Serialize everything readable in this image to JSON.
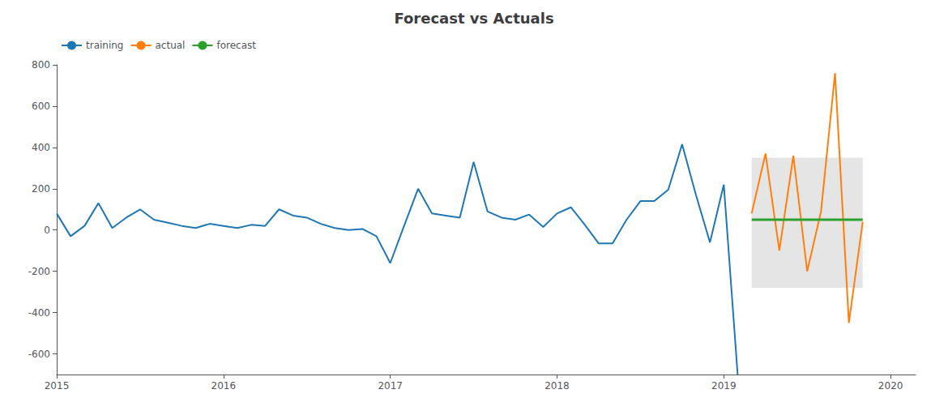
{
  "chart_data": {
    "type": "line",
    "title": "Forecast vs Actuals",
    "xlim": [
      2015.0,
      2020.15
    ],
    "xticks": [
      2015,
      2016,
      2017,
      2018,
      2019,
      2020
    ],
    "ylim": [
      -700,
      800
    ],
    "yticks": [
      -600,
      -400,
      -200,
      0,
      200,
      400,
      600,
      800
    ],
    "grid": false,
    "legend": "upper left",
    "series": [
      {
        "name": "training",
        "color": "#1f77b4",
        "x": [
          2015.0,
          2015.083,
          2015.167,
          2015.25,
          2015.333,
          2015.417,
          2015.5,
          2015.583,
          2015.667,
          2015.75,
          2015.833,
          2015.917,
          2016.0,
          2016.083,
          2016.167,
          2016.25,
          2016.333,
          2016.417,
          2016.5,
          2016.583,
          2016.667,
          2016.75,
          2016.833,
          2016.917,
          2017.0,
          2017.083,
          2017.167,
          2017.25,
          2017.333,
          2017.417,
          2017.5,
          2017.583,
          2017.667,
          2017.75,
          2017.833,
          2017.917,
          2018.0,
          2018.083,
          2018.167,
          2018.25,
          2018.333,
          2018.417,
          2018.5,
          2018.583,
          2018.667,
          2018.75,
          2018.833,
          2018.917,
          2019.0,
          2019.083
        ],
        "values": [
          80,
          -30,
          20,
          130,
          10,
          60,
          100,
          50,
          35,
          20,
          10,
          30,
          20,
          10,
          25,
          20,
          100,
          70,
          60,
          30,
          10,
          0,
          5,
          -30,
          -160,
          20,
          200,
          80,
          70,
          60,
          330,
          90,
          60,
          50,
          75,
          15,
          80,
          110,
          25,
          -65,
          -65,
          50,
          140,
          140,
          195,
          415,
          170,
          -60,
          220,
          -700
        ]
      },
      {
        "name": "actual",
        "color": "#ff7f0e",
        "x": [
          2019.167,
          2019.25,
          2019.333,
          2019.417,
          2019.5,
          2019.583,
          2019.667,
          2019.75,
          2019.833
        ],
        "values": [
          80,
          370,
          -100,
          360,
          -200,
          90,
          760,
          -450,
          40
        ]
      },
      {
        "name": "forecast",
        "color": "#2ca02c",
        "x": [
          2019.167,
          2019.833
        ],
        "values": [
          50,
          50
        ]
      }
    ],
    "shade": {
      "x": [
        2019.167,
        2019.833
      ],
      "y": [
        -280,
        350
      ],
      "color": "#d3d3d3"
    }
  }
}
